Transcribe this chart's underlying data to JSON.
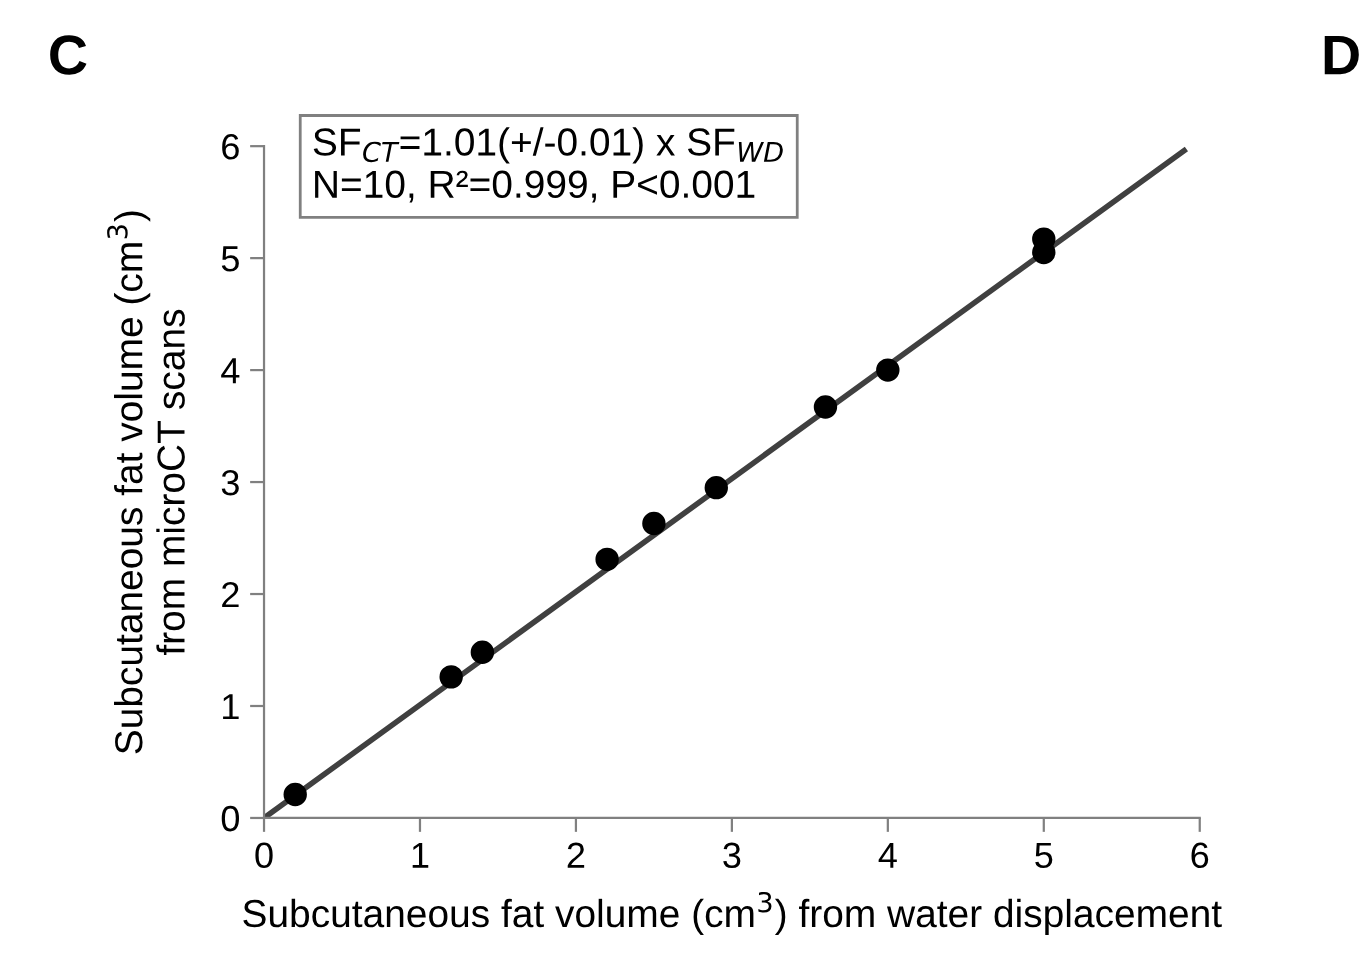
{
  "chart_data": {
    "type": "scatter",
    "xlabel": "Subcutaneous fat volume (cm$^{3}$) from water displacement",
    "ylabel": "Subcutaneous fat volume (cm$^{3}$)\nfrom microCT scans",
    "x": [
      0.2,
      1.2,
      1.4,
      2.2,
      2.5,
      2.9,
      3.6,
      4.0,
      5.0,
      5.0
    ],
    "series": [
      {
        "color": "#000000",
        "marker": "circle",
        "values": [
          0.21,
          1.26,
          1.48,
          2.31,
          2.63,
          2.95,
          3.67,
          4.0,
          5.17,
          5.05
        ]
      },
      {
        "type": "line",
        "color": "#404040",
        "marker": "none",
        "line_style": "solid",
        "x": [
          0,
          5.9
        ],
        "values": [
          0,
          5.96
        ]
      }
    ],
    "xlim": [
      0,
      6
    ],
    "ylim": [
      0,
      6
    ],
    "xticks": [
      0,
      1,
      2,
      3,
      4,
      5,
      6
    ],
    "yticks": [
      0,
      1,
      2,
      3,
      4,
      5,
      6
    ],
    "grid": false,
    "legend": false,
    "annotations": [
      "SF$_{CT}$=1.01(+/-0.01) x SF$_{WD}$\nN=10, R²=0.999, P<0.001",
      "C",
      "D"
    ]
  }
}
